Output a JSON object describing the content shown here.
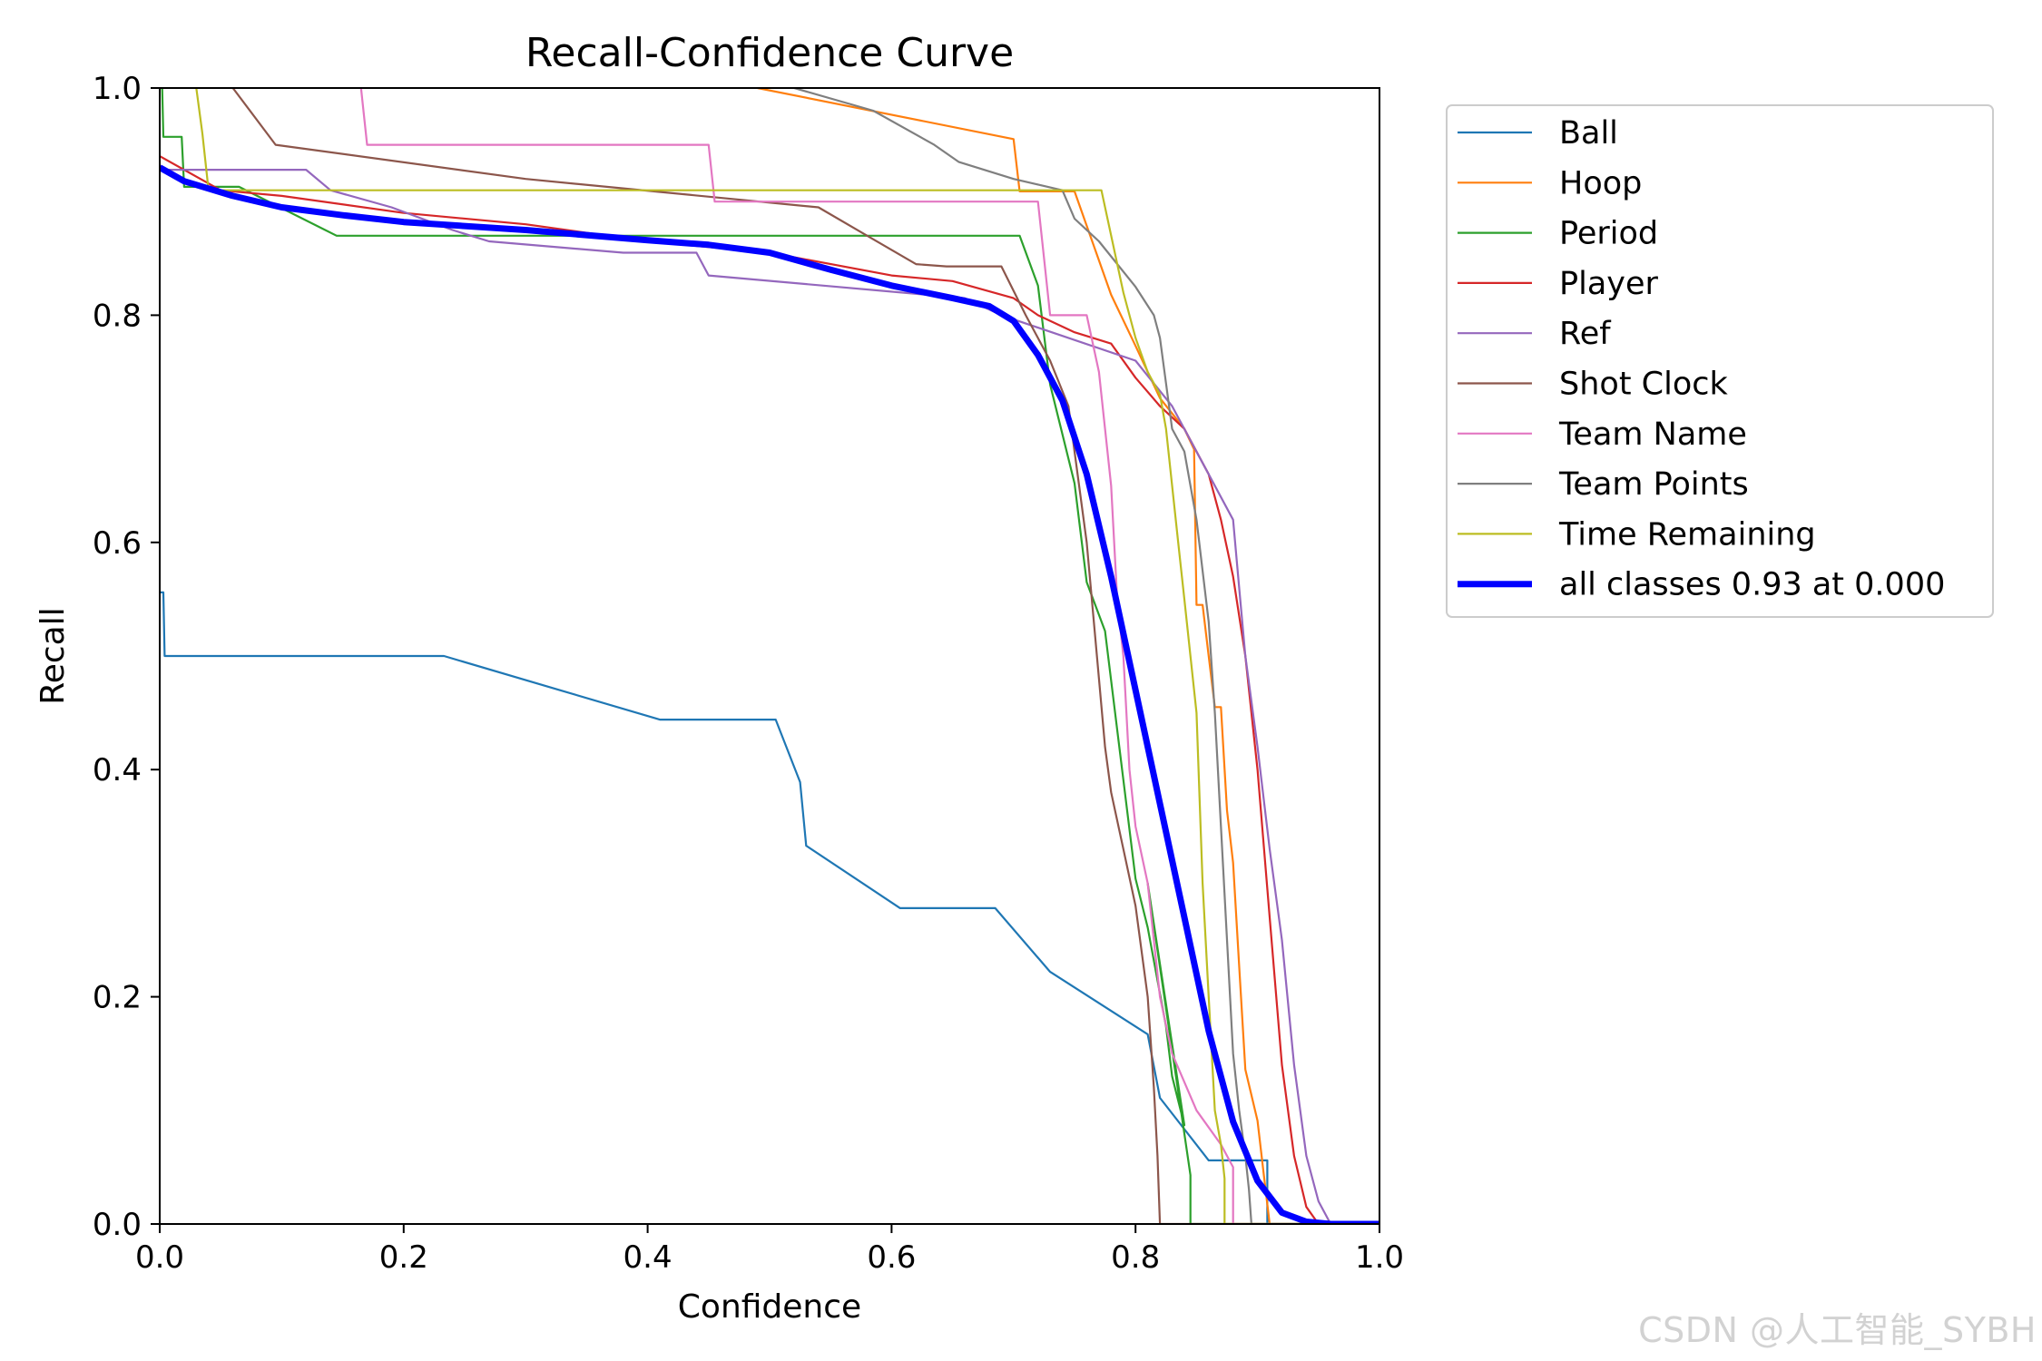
{
  "watermark": "CSDN @人工智能_SYBH",
  "chart_data": {
    "type": "line",
    "title": "Recall-Confidence Curve",
    "xlabel": "Confidence",
    "ylabel": "Recall",
    "xlim": [
      0.0,
      1.0
    ],
    "ylim": [
      0.0,
      1.0
    ],
    "xticks": [
      "0.0",
      "0.2",
      "0.4",
      "0.6",
      "0.8",
      "1.0"
    ],
    "yticks": [
      "0.0",
      "0.2",
      "0.4",
      "0.6",
      "0.8",
      "1.0"
    ],
    "grid": false,
    "legend_position": "outside top-right",
    "series": [
      {
        "name": "Ball",
        "color": "#1f77b4",
        "width": 2.2,
        "x": [
          0.0,
          0.003,
          0.004,
          0.05,
          0.233,
          0.41,
          0.505,
          0.525,
          0.53,
          0.607,
          0.685,
          0.73,
          0.81,
          0.82,
          0.86,
          0.9,
          0.908,
          0.908,
          1.0
        ],
        "y": [
          0.556,
          0.556,
          0.5,
          0.5,
          0.5,
          0.444,
          0.444,
          0.389,
          0.333,
          0.278,
          0.278,
          0.222,
          0.167,
          0.111,
          0.056,
          0.056,
          0.056,
          0.0,
          0.0
        ]
      },
      {
        "name": "Hoop",
        "color": "#ff7f0e",
        "width": 2.2,
        "x": [
          0.49,
          0.7,
          0.705,
          0.75,
          0.78,
          0.8,
          0.82,
          0.84,
          0.848,
          0.85,
          0.855,
          0.86,
          0.865,
          0.87,
          0.875,
          0.88,
          0.885,
          0.89,
          0.9,
          0.905,
          0.91,
          1.0
        ],
        "y": [
          1.0,
          0.955,
          0.909,
          0.909,
          0.818,
          0.773,
          0.727,
          0.7,
          0.682,
          0.545,
          0.545,
          0.5,
          0.455,
          0.455,
          0.364,
          0.318,
          0.227,
          0.136,
          0.091,
          0.045,
          0.0,
          0.0
        ]
      },
      {
        "name": "Period",
        "color": "#2ca02c",
        "width": 2.2,
        "x": [
          0.0,
          0.002,
          0.003,
          0.018,
          0.02,
          0.065,
          0.145,
          0.42,
          0.705,
          0.72,
          0.73,
          0.75,
          0.76,
          0.775,
          0.785,
          0.8,
          0.81,
          0.825,
          0.83,
          0.84,
          0.81,
          0.845,
          0.845,
          1.0
        ],
        "y": [
          1.0,
          1.0,
          0.957,
          0.957,
          0.913,
          0.913,
          0.87,
          0.87,
          0.87,
          0.826,
          0.739,
          0.652,
          0.565,
          0.522,
          0.435,
          0.304,
          0.261,
          0.174,
          0.13,
          0.087,
          0.3,
          0.043,
          0.0,
          0.0
        ]
      },
      {
        "name": "Player",
        "color": "#d62728",
        "width": 2.2,
        "x": [
          0.0,
          0.05,
          0.1,
          0.2,
          0.3,
          0.4,
          0.5,
          0.6,
          0.65,
          0.7,
          0.72,
          0.75,
          0.78,
          0.8,
          0.82,
          0.84,
          0.86,
          0.87,
          0.88,
          0.89,
          0.9,
          0.91,
          0.92,
          0.93,
          0.94,
          0.95,
          1.0
        ],
        "y": [
          0.94,
          0.91,
          0.905,
          0.89,
          0.88,
          0.865,
          0.855,
          0.835,
          0.83,
          0.815,
          0.8,
          0.785,
          0.775,
          0.745,
          0.72,
          0.7,
          0.66,
          0.62,
          0.57,
          0.5,
          0.4,
          0.27,
          0.14,
          0.06,
          0.015,
          0.0,
          0.0
        ]
      },
      {
        "name": "Ref",
        "color": "#9467bd",
        "width": 2.2,
        "x": [
          0.0,
          0.12,
          0.14,
          0.19,
          0.24,
          0.27,
          0.38,
          0.44,
          0.45,
          0.66,
          0.69,
          0.8,
          0.83,
          0.86,
          0.88,
          0.885,
          0.89,
          0.9,
          0.91,
          0.92,
          0.93,
          0.94,
          0.95,
          0.96,
          1.0
        ],
        "y": [
          0.928,
          0.928,
          0.91,
          0.895,
          0.875,
          0.865,
          0.855,
          0.855,
          0.835,
          0.815,
          0.8,
          0.76,
          0.72,
          0.66,
          0.62,
          0.56,
          0.5,
          0.42,
          0.33,
          0.25,
          0.14,
          0.06,
          0.02,
          0.0,
          0.0
        ]
      },
      {
        "name": "Shot Clock",
        "color": "#8c564b",
        "width": 2.2,
        "x": [
          0.06,
          0.095,
          0.3,
          0.54,
          0.58,
          0.62,
          0.645,
          0.69,
          0.71,
          0.73,
          0.745,
          0.76,
          0.77,
          0.775,
          0.78,
          0.79,
          0.8,
          0.81,
          0.815,
          0.818,
          0.82,
          1.0
        ],
        "y": [
          1.0,
          0.95,
          0.92,
          0.895,
          0.87,
          0.845,
          0.843,
          0.843,
          0.8,
          0.76,
          0.72,
          0.6,
          0.48,
          0.42,
          0.38,
          0.33,
          0.28,
          0.2,
          0.12,
          0.06,
          0.0,
          0.0
        ]
      },
      {
        "name": "Team Name",
        "color": "#e377c2",
        "width": 2.2,
        "x": [
          0.165,
          0.17,
          0.45,
          0.455,
          0.72,
          0.725,
          0.73,
          0.76,
          0.77,
          0.775,
          0.78,
          0.785,
          0.79,
          0.795,
          0.8,
          0.81,
          0.82,
          0.83,
          0.85,
          0.87,
          0.88,
          0.88,
          1.0
        ],
        "y": [
          1.0,
          0.95,
          0.95,
          0.9,
          0.9,
          0.85,
          0.8,
          0.8,
          0.75,
          0.7,
          0.65,
          0.55,
          0.5,
          0.4,
          0.35,
          0.3,
          0.2,
          0.15,
          0.1,
          0.07,
          0.05,
          0.0,
          0.0
        ]
      },
      {
        "name": "Team Points",
        "color": "#7f7f7f",
        "width": 2.2,
        "x": [
          0.52,
          0.585,
          0.635,
          0.655,
          0.7,
          0.74,
          0.75,
          0.77,
          0.8,
          0.815,
          0.82,
          0.825,
          0.83,
          0.84,
          0.85,
          0.86,
          0.865,
          0.87,
          0.875,
          0.88,
          0.885,
          0.89,
          0.893,
          0.895,
          1.0
        ],
        "y": [
          1.0,
          0.98,
          0.95,
          0.935,
          0.92,
          0.91,
          0.885,
          0.865,
          0.825,
          0.8,
          0.78,
          0.74,
          0.7,
          0.68,
          0.62,
          0.53,
          0.45,
          0.35,
          0.25,
          0.15,
          0.1,
          0.06,
          0.03,
          0.0,
          0.0
        ]
      },
      {
        "name": "Time Remaining",
        "color": "#bcbd22",
        "width": 2.2,
        "x": [
          0.03,
          0.035,
          0.04,
          0.2,
          0.772,
          0.79,
          0.8,
          0.81,
          0.82,
          0.825,
          0.83,
          0.835,
          0.84,
          0.845,
          0.85,
          0.855,
          0.86,
          0.865,
          0.87,
          0.873,
          0.873,
          1.0
        ],
        "y": [
          1.0,
          0.96,
          0.91,
          0.91,
          0.91,
          0.82,
          0.78,
          0.75,
          0.73,
          0.7,
          0.65,
          0.6,
          0.55,
          0.5,
          0.45,
          0.3,
          0.2,
          0.1,
          0.07,
          0.04,
          0.0,
          0.0
        ]
      },
      {
        "name": "all classes 0.93 at 0.000",
        "color": "#0000ff",
        "width": 7,
        "x": [
          0.0,
          0.02,
          0.06,
          0.1,
          0.15,
          0.2,
          0.3,
          0.4,
          0.45,
          0.5,
          0.55,
          0.6,
          0.65,
          0.68,
          0.7,
          0.72,
          0.74,
          0.76,
          0.78,
          0.8,
          0.82,
          0.84,
          0.86,
          0.88,
          0.9,
          0.92,
          0.94,
          0.96,
          1.0
        ],
        "y": [
          0.93,
          0.918,
          0.905,
          0.895,
          0.888,
          0.882,
          0.875,
          0.866,
          0.862,
          0.855,
          0.84,
          0.826,
          0.815,
          0.808,
          0.795,
          0.765,
          0.725,
          0.66,
          0.57,
          0.47,
          0.37,
          0.27,
          0.17,
          0.09,
          0.038,
          0.01,
          0.002,
          0.0,
          0.0
        ]
      }
    ]
  }
}
